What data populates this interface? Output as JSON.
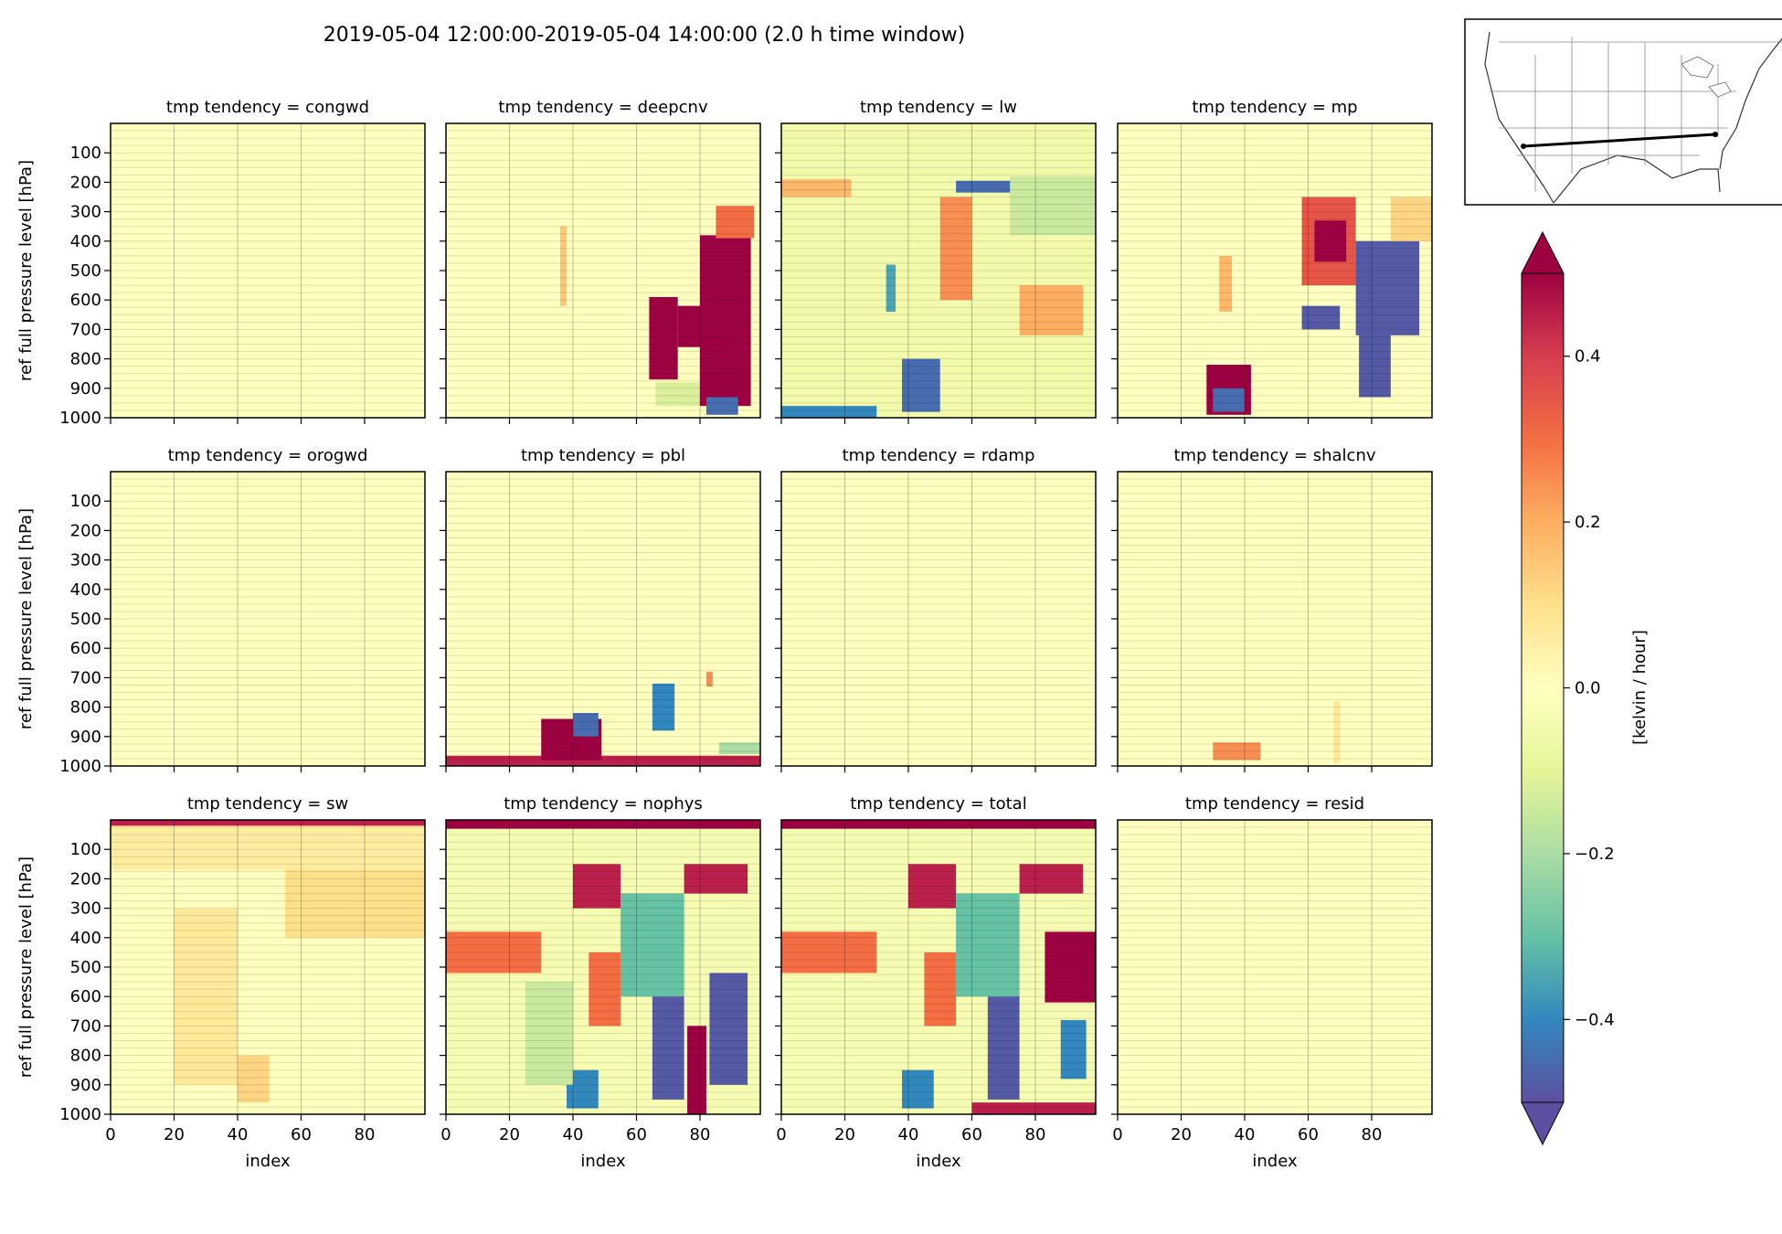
{
  "figure": {
    "title": "2019-05-04 12:00:00-2019-05-04 14:00:00 (2.0 h time window)"
  },
  "chart_data": {
    "type": "heatmap",
    "xlabel": "index",
    "ylabel": "ref full pressure level [hPa]",
    "x_ticks": [
      0,
      20,
      40,
      60,
      80
    ],
    "y_ticks": [
      100,
      200,
      300,
      400,
      500,
      600,
      700,
      800,
      900,
      1000
    ],
    "xlim": [
      0,
      99
    ],
    "ylim": [
      1000,
      0
    ],
    "grid": true,
    "colormap": "Spectral_r",
    "colorbar": {
      "label": "[kelvin / hour]",
      "ticks": [
        0.4,
        0.2,
        0.0,
        -0.2,
        -0.4
      ],
      "tick_labels": [
        "0.4",
        "0.2",
        "0.0",
        "−0.2",
        "−0.4"
      ],
      "range": [
        -0.5,
        0.5
      ],
      "extend": "both",
      "colors": [
        "#5e4fa2",
        "#3288bd",
        "#66c2a5",
        "#abdda4",
        "#e6f598",
        "#ffffbf",
        "#fee08b",
        "#fdae61",
        "#f46d43",
        "#d53e4f",
        "#9e0142"
      ]
    },
    "panels": [
      {
        "title": "tmp tendency = congwd",
        "features": []
      },
      {
        "title": "tmp tendency = deepcnv",
        "features": [
          {
            "x": [
              64,
              73
            ],
            "p": [
              590,
              870
            ],
            "v": 0.5
          },
          {
            "x": [
              80,
              96
            ],
            "p": [
              380,
              960
            ],
            "v": 0.5
          },
          {
            "x": [
              85,
              97
            ],
            "p": [
              280,
              390
            ],
            "v": 0.3
          },
          {
            "x": [
              73,
              80
            ],
            "p": [
              620,
              760
            ],
            "v": 0.5
          },
          {
            "x": [
              36,
              38
            ],
            "p": [
              350,
              620
            ],
            "v": 0.15
          },
          {
            "x": [
              66,
              80
            ],
            "p": [
              880,
              960
            ],
            "v": -0.12
          },
          {
            "x": [
              82,
              92
            ],
            "p": [
              930,
              990
            ],
            "v": -0.45
          }
        ]
      },
      {
        "title": "tmp tendency = lw",
        "features": [
          {
            "x": [
              0,
              99
            ],
            "p": [
              0,
              1000
            ],
            "v": -0.05
          },
          {
            "x": [
              0,
              22
            ],
            "p": [
              190,
              250
            ],
            "v": 0.18
          },
          {
            "x": [
              55,
              80
            ],
            "p": [
              195,
              235
            ],
            "v": -0.45
          },
          {
            "x": [
              72,
              99
            ],
            "p": [
              180,
              380
            ],
            "v": -0.15
          },
          {
            "x": [
              33,
              36
            ],
            "p": [
              480,
              640
            ],
            "v": -0.35
          },
          {
            "x": [
              38,
              50
            ],
            "p": [
              800,
              980
            ],
            "v": -0.45
          },
          {
            "x": [
              50,
              60
            ],
            "p": [
              250,
              600
            ],
            "v": 0.25
          },
          {
            "x": [
              75,
              95
            ],
            "p": [
              550,
              720
            ],
            "v": 0.2
          },
          {
            "x": [
              0,
              30
            ],
            "p": [
              960,
              1000
            ],
            "v": -0.4
          }
        ]
      },
      {
        "title": "tmp tendency = mp",
        "features": [
          {
            "x": [
              58,
              75
            ],
            "p": [
              250,
              550
            ],
            "v": 0.35
          },
          {
            "x": [
              62,
              72
            ],
            "p": [
              330,
              470
            ],
            "v": 0.5
          },
          {
            "x": [
              58,
              70
            ],
            "p": [
              620,
              700
            ],
            "v": -0.48
          },
          {
            "x": [
              75,
              95
            ],
            "p": [
              400,
              720
            ],
            "v": -0.48
          },
          {
            "x": [
              76,
              86
            ],
            "p": [
              700,
              930
            ],
            "v": -0.48
          },
          {
            "x": [
              28,
              42
            ],
            "p": [
              820,
              990
            ],
            "v": 0.5
          },
          {
            "x": [
              30,
              40
            ],
            "p": [
              900,
              980
            ],
            "v": -0.45
          },
          {
            "x": [
              32,
              36
            ],
            "p": [
              450,
              640
            ],
            "v": 0.18
          },
          {
            "x": [
              86,
              99
            ],
            "p": [
              250,
              400
            ],
            "v": 0.12
          }
        ]
      },
      {
        "title": "tmp tendency = orogwd",
        "features": []
      },
      {
        "title": "tmp tendency = pbl",
        "features": [
          {
            "x": [
              0,
              99
            ],
            "p": [
              965,
              1000
            ],
            "v": 0.45
          },
          {
            "x": [
              30,
              49
            ],
            "p": [
              840,
              980
            ],
            "v": 0.5
          },
          {
            "x": [
              40,
              48
            ],
            "p": [
              820,
              900
            ],
            "v": -0.45
          },
          {
            "x": [
              65,
              72
            ],
            "p": [
              720,
              880
            ],
            "v": -0.4
          },
          {
            "x": [
              82,
              84
            ],
            "p": [
              680,
              730
            ],
            "v": 0.25
          },
          {
            "x": [
              86,
              99
            ],
            "p": [
              920,
              960
            ],
            "v": -0.2
          }
        ]
      },
      {
        "title": "tmp tendency = rdamp",
        "features": []
      },
      {
        "title": "tmp tendency = shalcnv",
        "features": [
          {
            "x": [
              30,
              45
            ],
            "p": [
              920,
              980
            ],
            "v": 0.25
          },
          {
            "x": [
              68,
              70
            ],
            "p": [
              780,
              990
            ],
            "v": 0.08
          }
        ]
      },
      {
        "title": "tmp tendency = sw",
        "features": [
          {
            "x": [
              0,
              99
            ],
            "p": [
              0,
              20
            ],
            "v": 0.45
          },
          {
            "x": [
              0,
              99
            ],
            "p": [
              20,
              170
            ],
            "v": 0.06
          },
          {
            "x": [
              55,
              99
            ],
            "p": [
              170,
              400
            ],
            "v": 0.1
          },
          {
            "x": [
              20,
              40
            ],
            "p": [
              300,
              900
            ],
            "v": 0.07
          },
          {
            "x": [
              40,
              50
            ],
            "p": [
              800,
              960
            ],
            "v": 0.12
          }
        ]
      },
      {
        "title": "tmp tendency = nophys",
        "features": [
          {
            "x": [
              0,
              99
            ],
            "p": [
              0,
              1000
            ],
            "v": -0.03
          },
          {
            "x": [
              0,
              99
            ],
            "p": [
              0,
              30
            ],
            "v": 0.5
          },
          {
            "x": [
              0,
              30
            ],
            "p": [
              380,
              520
            ],
            "v": 0.3
          },
          {
            "x": [
              40,
              55
            ],
            "p": [
              150,
              300
            ],
            "v": 0.45
          },
          {
            "x": [
              75,
              95
            ],
            "p": [
              150,
              250
            ],
            "v": 0.45
          },
          {
            "x": [
              55,
              75
            ],
            "p": [
              250,
              600
            ],
            "v": -0.3
          },
          {
            "x": [
              65,
              75
            ],
            "p": [
              600,
              950
            ],
            "v": -0.48
          },
          {
            "x": [
              83,
              95
            ],
            "p": [
              520,
              900
            ],
            "v": -0.48
          },
          {
            "x": [
              76,
              82
            ],
            "p": [
              700,
              1000
            ],
            "v": 0.5
          },
          {
            "x": [
              38,
              48
            ],
            "p": [
              850,
              980
            ],
            "v": -0.4
          },
          {
            "x": [
              45,
              55
            ],
            "p": [
              450,
              700
            ],
            "v": 0.3
          },
          {
            "x": [
              25,
              40
            ],
            "p": [
              550,
              900
            ],
            "v": -0.15
          }
        ]
      },
      {
        "title": "tmp tendency = total",
        "features": [
          {
            "x": [
              0,
              99
            ],
            "p": [
              0,
              1000
            ],
            "v": -0.03
          },
          {
            "x": [
              0,
              99
            ],
            "p": [
              0,
              30
            ],
            "v": 0.5
          },
          {
            "x": [
              0,
              30
            ],
            "p": [
              380,
              520
            ],
            "v": 0.3
          },
          {
            "x": [
              40,
              55
            ],
            "p": [
              150,
              300
            ],
            "v": 0.45
          },
          {
            "x": [
              75,
              95
            ],
            "p": [
              150,
              250
            ],
            "v": 0.45
          },
          {
            "x": [
              55,
              75
            ],
            "p": [
              250,
              600
            ],
            "v": -0.3
          },
          {
            "x": [
              65,
              75
            ],
            "p": [
              600,
              950
            ],
            "v": -0.48
          },
          {
            "x": [
              83,
              99
            ],
            "p": [
              380,
              620
            ],
            "v": 0.5
          },
          {
            "x": [
              88,
              96
            ],
            "p": [
              680,
              880
            ],
            "v": -0.4
          },
          {
            "x": [
              38,
              48
            ],
            "p": [
              850,
              980
            ],
            "v": -0.4
          },
          {
            "x": [
              45,
              55
            ],
            "p": [
              450,
              700
            ],
            "v": 0.3
          },
          {
            "x": [
              60,
              99
            ],
            "p": [
              960,
              1000
            ],
            "v": 0.45
          }
        ]
      },
      {
        "title": "tmp tendency = resid",
        "features": []
      }
    ]
  }
}
